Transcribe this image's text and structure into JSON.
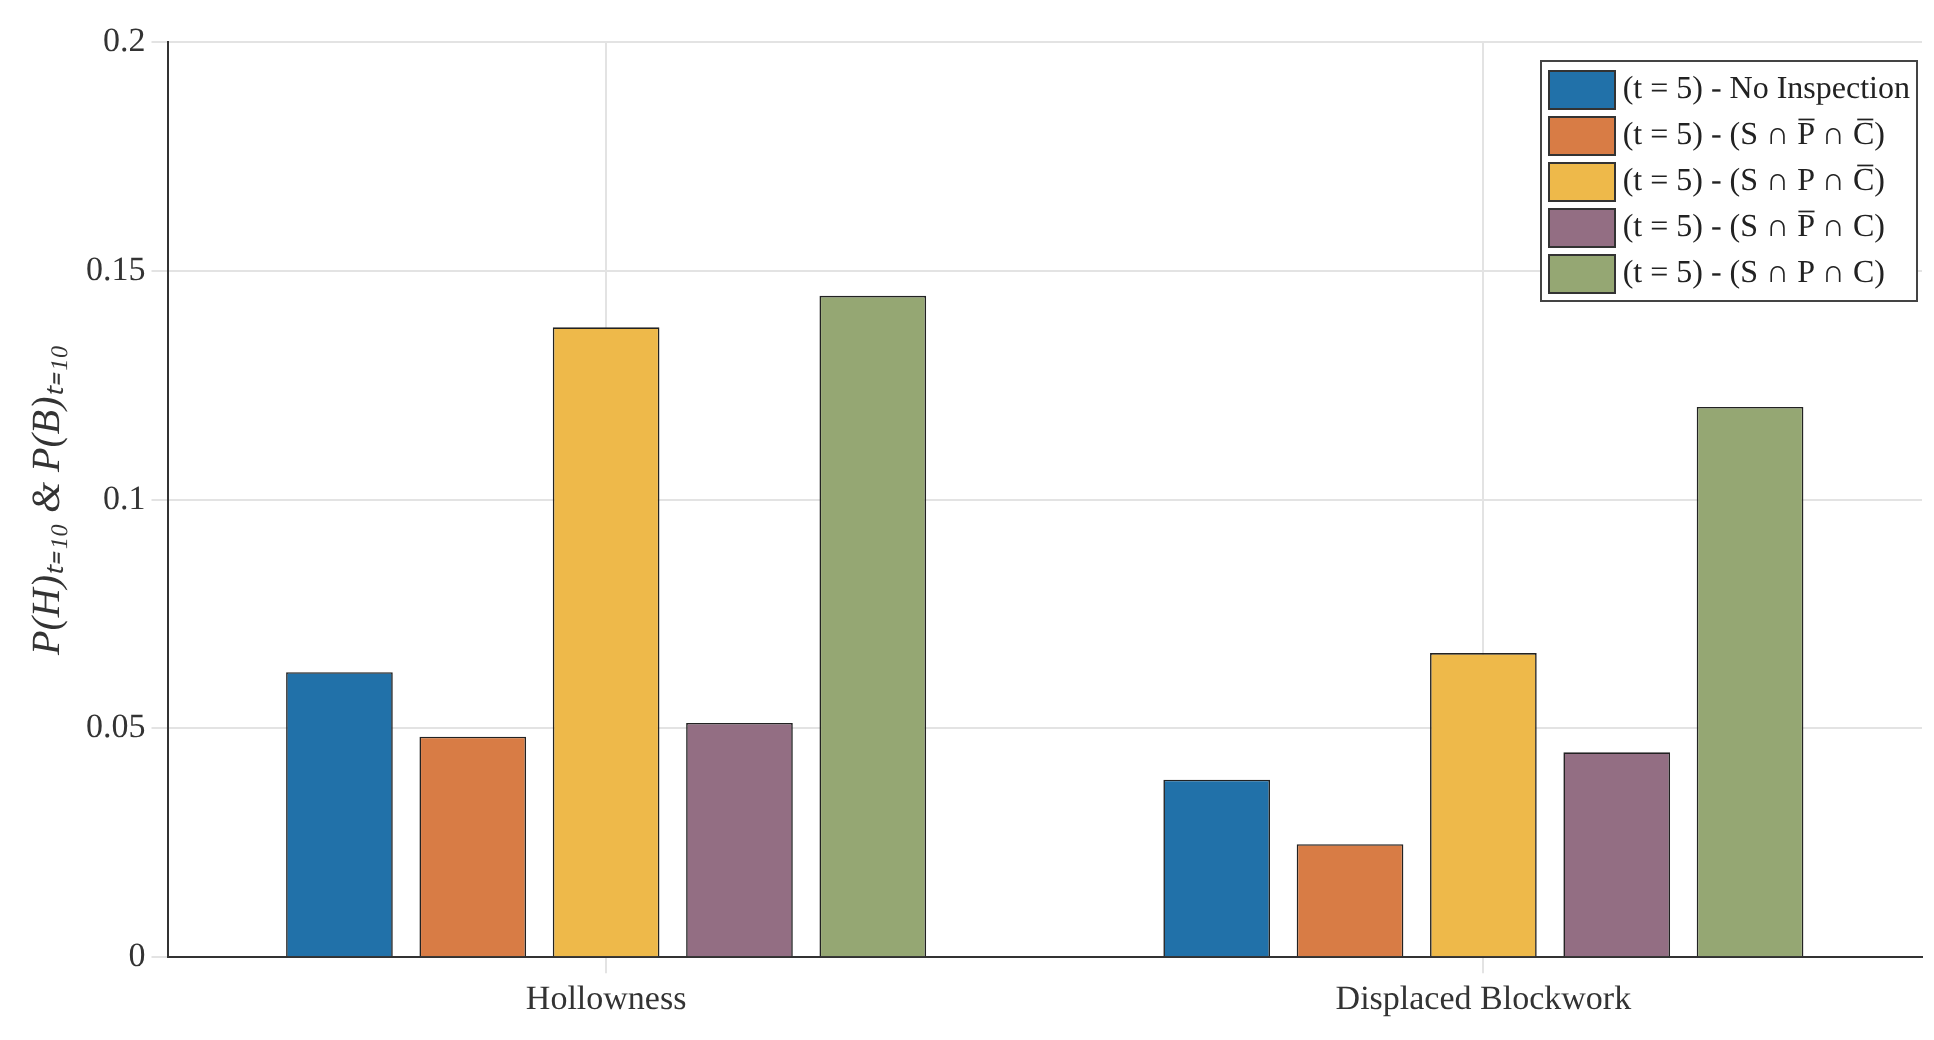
{
  "chart_data": {
    "type": "bar",
    "ylabel": "P(H)ₜ₌₁₀ & P(B)ₜ₌₁₀",
    "categories": [
      "Hollowness",
      "Displaced Blockwork"
    ],
    "series": [
      {
        "name": "(t = 5) - No Inspection",
        "color": "#2171a9",
        "values": [
          0.0623,
          0.0388
        ]
      },
      {
        "name": "(t = 5) - (S ∩ P̅ ∩ C̅)",
        "color": "#d87c45",
        "values": [
          0.0482,
          0.0247
        ]
      },
      {
        "name": "(t = 5) - (S ∩ P ∩ C̅)",
        "color": "#eeb94a",
        "values": [
          0.1377,
          0.0665
        ]
      },
      {
        "name": "(t = 5) - (S ∩ P̅ ∩ C)",
        "color": "#936e83",
        "values": [
          0.0512,
          0.0448
        ]
      },
      {
        "name": "(t = 5) - (S ∩ P ∩ C)",
        "color": "#95a773",
        "values": [
          0.1446,
          0.1203
        ]
      }
    ],
    "ylim": [
      0,
      0.2
    ],
    "yticks": [
      0,
      0.05,
      0.1,
      0.15,
      0.2
    ],
    "grid": true,
    "legend": "top right"
  }
}
